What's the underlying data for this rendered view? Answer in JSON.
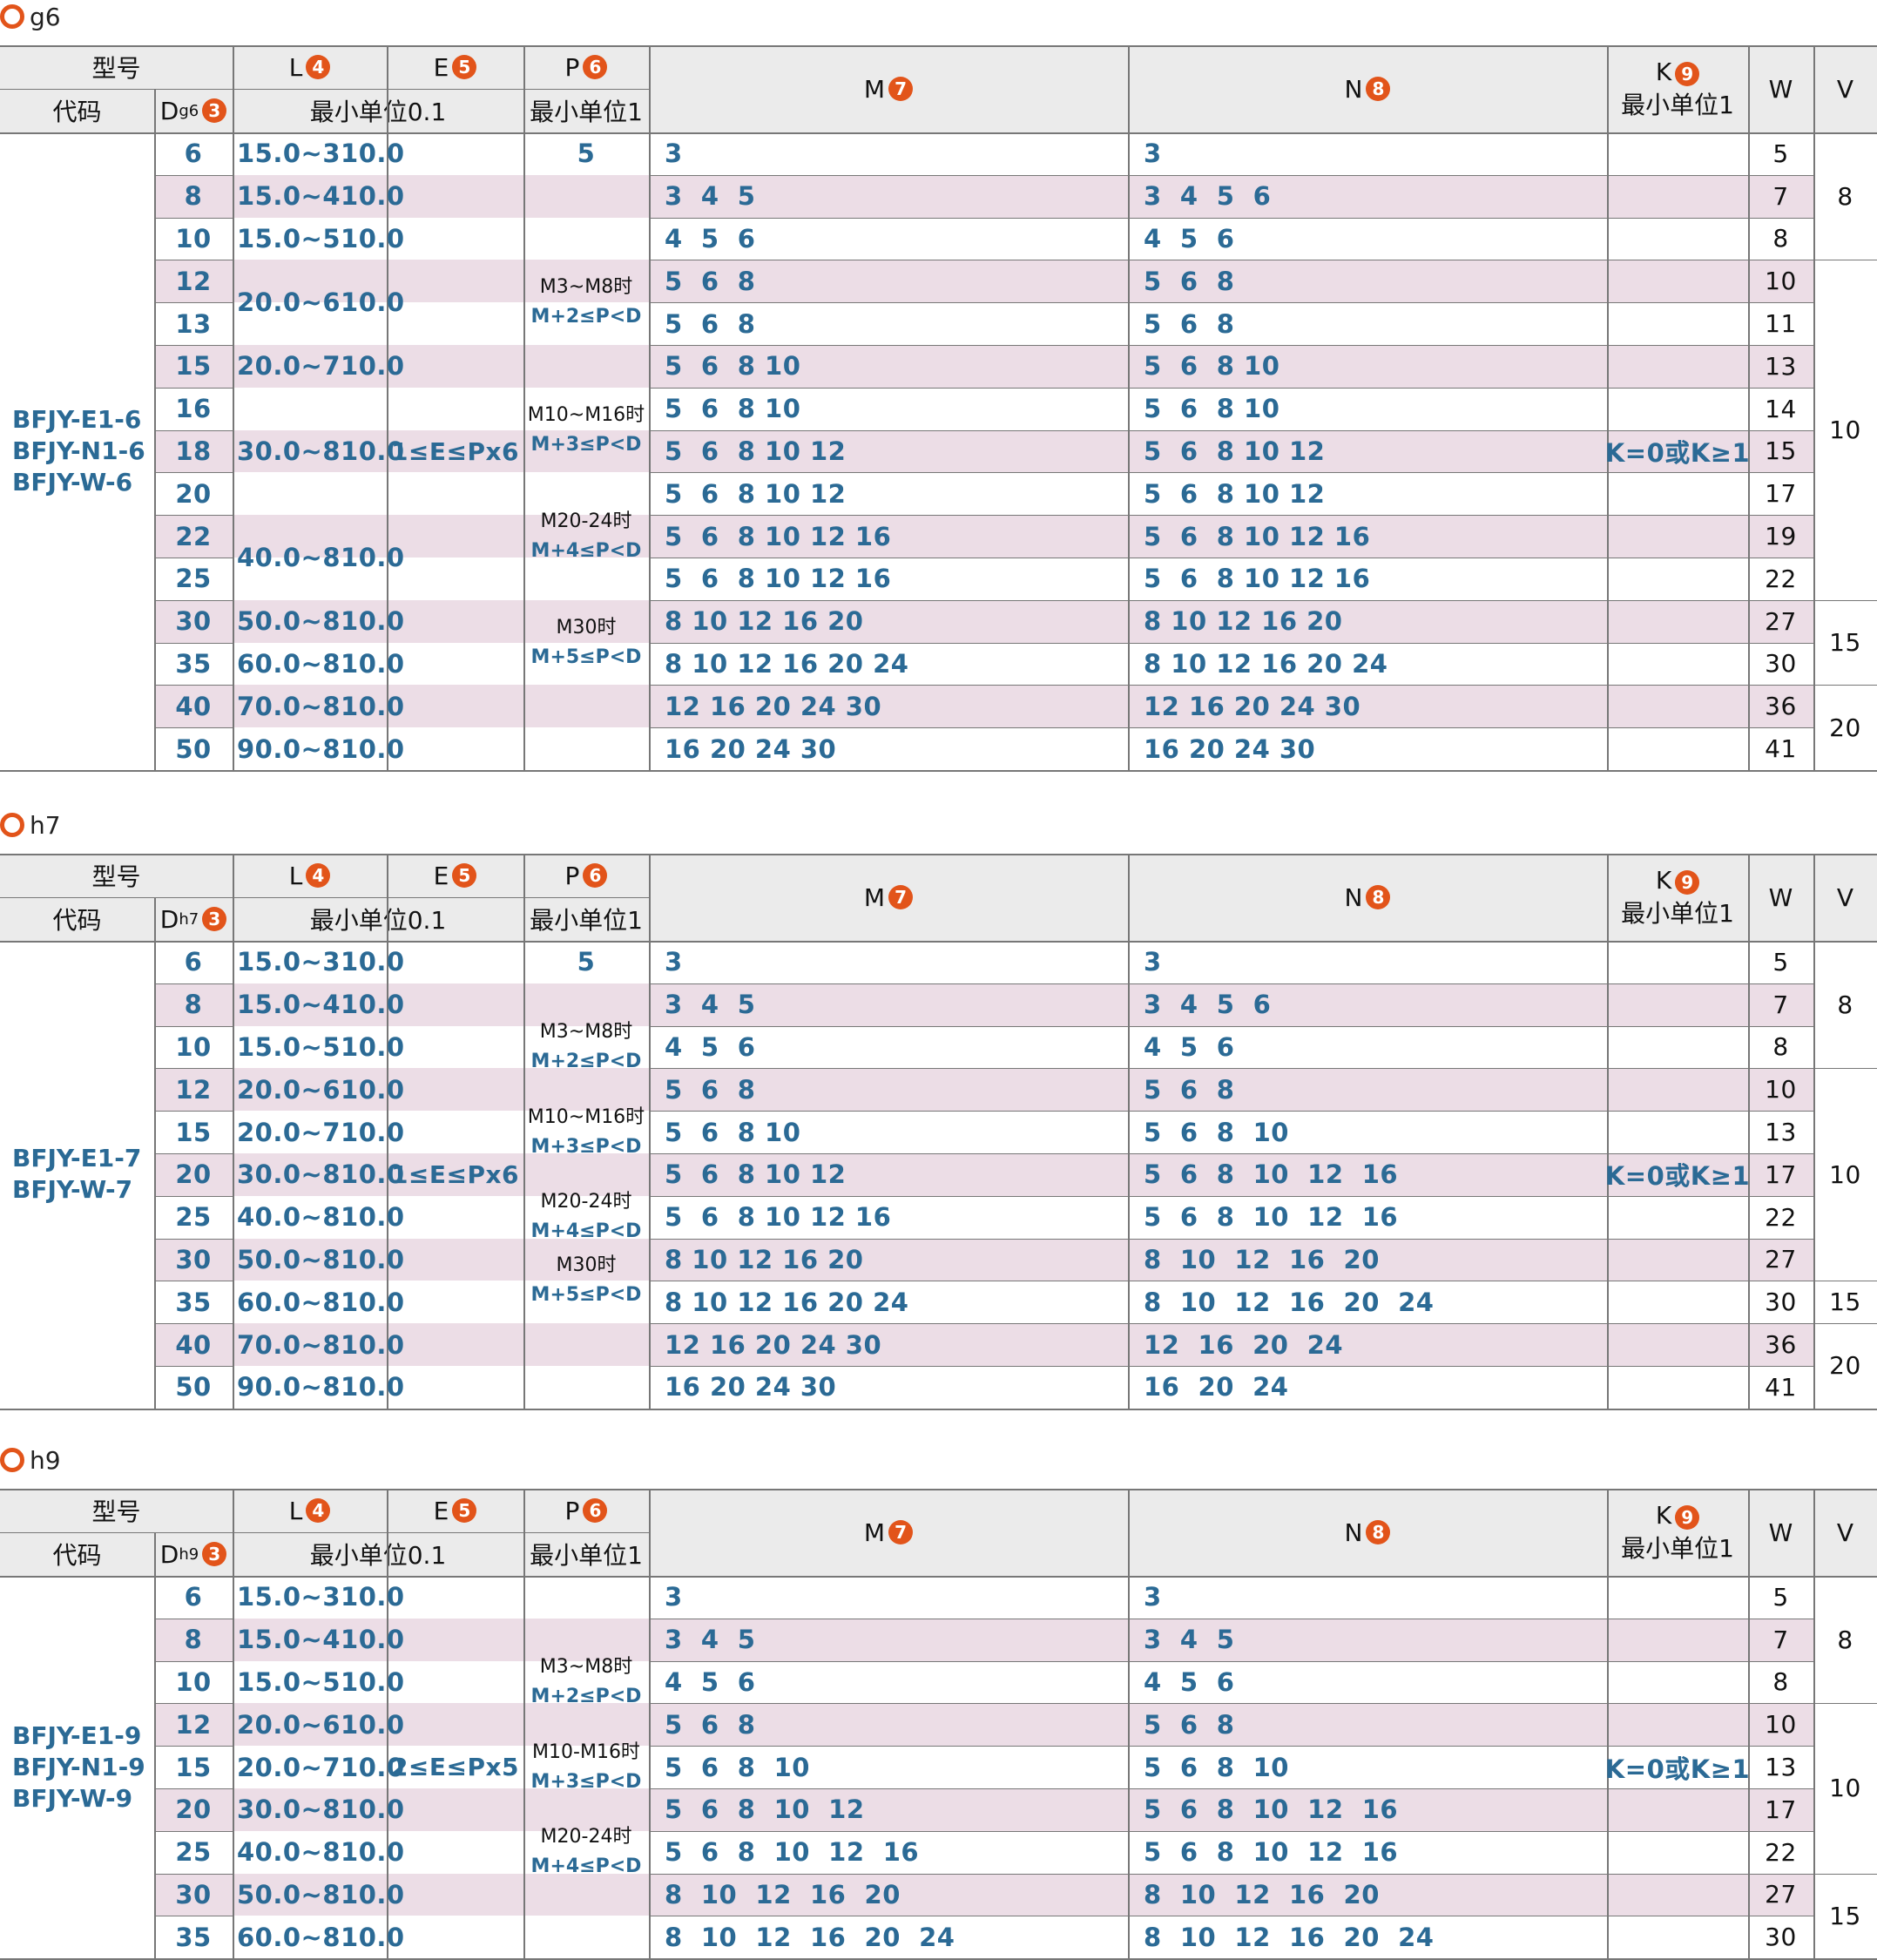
{
  "headers": {
    "model": "型号",
    "code": "代码",
    "L": "L",
    "L_badge": "4",
    "E": "E",
    "E_badge": "5",
    "P": "P",
    "P_badge": "6",
    "M": "M",
    "M_badge": "7",
    "N": "N",
    "N_badge": "8",
    "K": "K",
    "K_badge": "9",
    "W": "W",
    "V": "V",
    "D": "D",
    "D_badge": "3",
    "min01": "最小单位0.1",
    "min1": "最小单位1",
    "k_min1": "最小单位1"
  },
  "tables": [
    {
      "title": "g6",
      "d_sub": "g6",
      "codes": [
        "BFJY-E1-6",
        "BFJY-N1-6",
        "BFJY-W-6"
      ],
      "e_text": "1≤E≤Px6",
      "k_text": "K=0或K≥1",
      "p_first": "5",
      "p_notes": [
        [
          "M3~M8时",
          "M+2≤P<D"
        ],
        [
          "M10~M16时",
          "M+3≤P<D"
        ],
        [
          "M20-24时",
          "M+4≤P<D"
        ],
        [
          "M30时",
          "M+5≤P<D"
        ]
      ],
      "rows": [
        {
          "d": "6",
          "l": "15.0~310.0",
          "m": "3",
          "n": "3",
          "w": "5"
        },
        {
          "d": "8",
          "l": "15.0~410.0",
          "m": "3  4  5",
          "n": "3  4  5  6",
          "w": "7"
        },
        {
          "d": "10",
          "l": "15.0~510.0",
          "m": "4  5  6",
          "n": "4  5  6",
          "w": "8"
        },
        {
          "d": "12",
          "l": "20.0~610.0",
          "m": "5  6  8",
          "n": "5  6  8",
          "w": "10"
        },
        {
          "d": "13",
          "l": "",
          "m": "5  6  8",
          "n": "5  6  8",
          "w": "11"
        },
        {
          "d": "15",
          "l": "20.0~710.0",
          "m": "5  6  8 10",
          "n": "5  6  8 10",
          "w": "13"
        },
        {
          "d": "16",
          "l": "",
          "m": "5  6  8 10",
          "n": "5  6  8 10",
          "w": "14"
        },
        {
          "d": "18",
          "l": "30.0~810.0",
          "m": "5  6  8 10 12",
          "n": "5  6  8 10 12",
          "w": "15"
        },
        {
          "d": "20",
          "l": "",
          "m": "5  6  8 10 12",
          "n": "5  6  8 10 12",
          "w": "17"
        },
        {
          "d": "22",
          "l": "40.0~810.0",
          "m": "5  6  8 10 12 16",
          "n": "5  6  8 10 12 16",
          "w": "19"
        },
        {
          "d": "25",
          "l": "",
          "m": "5  6  8 10 12 16",
          "n": "5  6  8 10 12 16",
          "w": "22"
        },
        {
          "d": "30",
          "l": "50.0~810.0",
          "m": "8 10 12 16 20",
          "n": "8 10 12 16 20",
          "w": "27"
        },
        {
          "d": "35",
          "l": "60.0~810.0",
          "m": "8 10 12 16 20 24",
          "n": "8 10 12 16 20 24",
          "w": "30"
        },
        {
          "d": "40",
          "l": "70.0~810.0",
          "m": "12 16 20 24 30",
          "n": "12 16 20 24 30",
          "w": "36"
        },
        {
          "d": "50",
          "l": "90.0~810.0",
          "m": "16 20 24 30",
          "n": "16 20 24 30",
          "w": "41"
        }
      ],
      "v": [
        "8",
        "10",
        "15",
        "20"
      ]
    },
    {
      "title": "h7",
      "d_sub": "h7",
      "codes": [
        "BFJY-E1-7",
        "BFJY-W-7"
      ],
      "e_text": "1≤E≤Px6",
      "k_text": "K=0或K≥1",
      "p_first": "5",
      "p_notes": [
        [
          "M3~M8时",
          "M+2≤P<D"
        ],
        [
          "M10~M16时",
          "M+3≤P<D"
        ],
        [
          "M20-24时",
          "M+4≤P<D"
        ],
        [
          "M30时",
          "M+5≤P<D"
        ]
      ],
      "rows": [
        {
          "d": "6",
          "l": "15.0~310.0",
          "m": "3",
          "n": "3",
          "w": "5"
        },
        {
          "d": "8",
          "l": "15.0~410.0",
          "m": "3  4  5",
          "n": "3  4  5  6",
          "w": "7"
        },
        {
          "d": "10",
          "l": "15.0~510.0",
          "m": "4  5  6",
          "n": "4  5  6",
          "w": "8"
        },
        {
          "d": "12",
          "l": "20.0~610.0",
          "m": "5  6  8",
          "n": "5  6  8",
          "w": "10"
        },
        {
          "d": "15",
          "l": "20.0~710.0",
          "m": "5  6  8 10",
          "n": "5  6  8  10",
          "w": "13"
        },
        {
          "d": "20",
          "l": "30.0~810.0",
          "m": "5  6  8 10 12",
          "n": "5  6  8  10  12  16",
          "w": "17"
        },
        {
          "d": "25",
          "l": "40.0~810.0",
          "m": "5  6  8 10 12 16",
          "n": "5  6  8  10  12  16",
          "w": "22"
        },
        {
          "d": "30",
          "l": "50.0~810.0",
          "m": "8 10 12 16 20",
          "n": "8  10  12  16  20",
          "w": "27"
        },
        {
          "d": "35",
          "l": "60.0~810.0",
          "m": "8 10 12 16 20 24",
          "n": "8  10  12  16  20  24",
          "w": "30"
        },
        {
          "d": "40",
          "l": "70.0~810.0",
          "m": "12 16 20 24 30",
          "n": "12  16  20  24",
          "w": "36"
        },
        {
          "d": "50",
          "l": "90.0~810.0",
          "m": "16 20 24 30",
          "n": "16  20  24",
          "w": "41"
        }
      ],
      "v": [
        "8",
        "10",
        "15",
        "20"
      ]
    },
    {
      "title": "h9",
      "d_sub": "h9",
      "codes": [
        "BFJY-E1-9",
        "BFJY-N1-9",
        "BFJY-W-9"
      ],
      "e_text": "2≤E≤Px5",
      "k_text": "K=0或K≥1",
      "p_first": "",
      "p_notes": [
        [
          "M3~M8时",
          "M+2≤P<D"
        ],
        [
          "M10-M16时",
          "M+3≤P<D"
        ],
        [
          "M20-24时",
          "M+4≤P<D"
        ]
      ],
      "rows": [
        {
          "d": "6",
          "l": "15.0~310.0",
          "m": "3",
          "n": "3",
          "w": "5"
        },
        {
          "d": "8",
          "l": "15.0~410.0",
          "m": "3  4  5",
          "n": "3  4  5",
          "w": "7"
        },
        {
          "d": "10",
          "l": "15.0~510.0",
          "m": "4  5  6",
          "n": "4  5  6",
          "w": "8"
        },
        {
          "d": "12",
          "l": "20.0~610.0",
          "m": "5  6  8",
          "n": "5  6  8",
          "w": "10"
        },
        {
          "d": "15",
          "l": "20.0~710.0",
          "m": "5  6  8  10",
          "n": "5  6  8  10",
          "w": "13"
        },
        {
          "d": "20",
          "l": "30.0~810.0",
          "m": "5  6  8  10  12",
          "n": "5  6  8  10  12  16",
          "w": "17"
        },
        {
          "d": "25",
          "l": "40.0~810.0",
          "m": "5  6  8  10  12  16",
          "n": "5  6  8  10  12  16",
          "w": "22"
        },
        {
          "d": "30",
          "l": "50.0~810.0",
          "m": "8  10  12  16  20",
          "n": "8  10  12  16  20",
          "w": "27"
        },
        {
          "d": "35",
          "l": "60.0~810.0",
          "m": "8  10  12  16  20  24",
          "n": "8  10  12  16  20  24",
          "w": "30"
        }
      ],
      "v": [
        "8",
        "10",
        "15"
      ]
    }
  ]
}
